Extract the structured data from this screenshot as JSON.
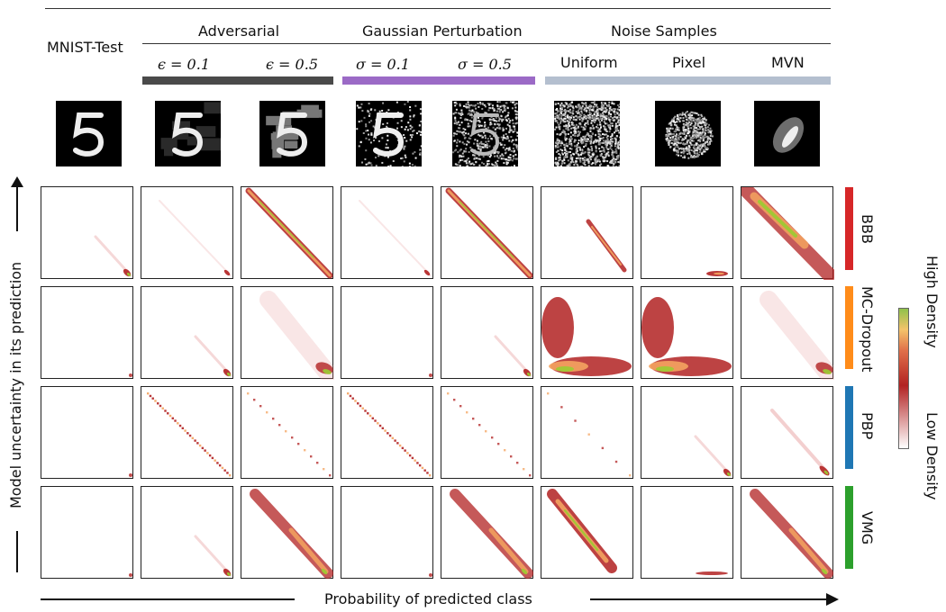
{
  "columns": {
    "mnist": "MNIST-Test",
    "groups": [
      {
        "title": "Adversarial",
        "color": "#4a4a4a"
      },
      {
        "title": "Gaussian Perturbation",
        "color": "#9b6ac6"
      },
      {
        "title": "Noise Samples",
        "color": "#b4bfcf"
      }
    ],
    "sub": [
      {
        "sym": "ϵ",
        "val": " = 0.1"
      },
      {
        "sym": "ϵ",
        "val": " = 0.5"
      },
      {
        "sym": "σ",
        "val": " = 0.1"
      },
      {
        "sym": "σ",
        "val": " = 0.5"
      }
    ],
    "noise": [
      "Uniform",
      "Pixel",
      "MVN"
    ]
  },
  "rows": [
    {
      "name": "BBB",
      "color": "#d62728"
    },
    {
      "name": "MC-Dropout",
      "color": "#ff8c1a"
    },
    {
      "name": "PBP",
      "color": "#1f77b4"
    },
    {
      "name": "VMG",
      "color": "#2ca02c"
    }
  ],
  "axes": {
    "xlabel": "Probability of predicted class",
    "ylabel": "Model uncertainty in its prediction"
  },
  "colorbar": {
    "high": "High Density",
    "low": "Low Density"
  },
  "chart_data": {
    "type": "heatmap",
    "x_axis": "Probability of predicted class",
    "y_axis": "Model uncertainty in its prediction",
    "colorscale": [
      "#ffffff",
      "#b22222",
      "#f4a460",
      "#9acd32"
    ],
    "columns": [
      "MNIST-Test",
      "Adversarial ϵ = 0.1",
      "Adversarial ϵ = 0.5",
      "Gaussian σ = 0.1",
      "Gaussian σ = 0.5",
      "Uniform",
      "Pixel",
      "MVN"
    ],
    "rows": [
      "BBB",
      "MC-Dropout",
      "PBP",
      "VMG"
    ],
    "density_patterns": [
      [
        "corner",
        "diag-faint",
        "diag-strong",
        "diag-faint",
        "diag-strong",
        "diag-mid",
        "bottom-corner",
        "blob-diag"
      ],
      [
        "corner-tiny",
        "corner",
        "corner-plume",
        "corner-tiny",
        "corner",
        "L-shape",
        "L-shape",
        "corner-plume"
      ],
      [
        "corner-tiny",
        "dots-diag",
        "dots-diag-sparse",
        "dots-diag",
        "dots-diag-sparse",
        "dots-sparse",
        "corner",
        "corner-diag"
      ],
      [
        "corner-tiny",
        "corner",
        "diag-broad",
        "corner-tiny",
        "diag-broad",
        "blob-mid",
        "bottom-line",
        "diag-broad"
      ]
    ]
  }
}
